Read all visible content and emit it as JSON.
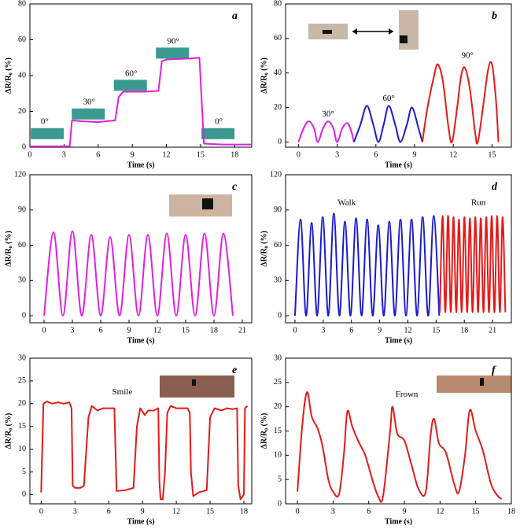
{
  "chart_data": [
    {
      "type": "line",
      "panel_label": "a",
      "x_label": "Time (s)",
      "y_label": "ΔR/R₀ (%)",
      "xlim": [
        0,
        19.5
      ],
      "xticks": [
        0,
        3,
        6,
        9,
        12,
        15,
        18
      ],
      "ylim": [
        0,
        80
      ],
      "yticks": [
        0,
        20,
        40,
        60,
        80
      ],
      "annotations": [
        "0°",
        "30°",
        "60°",
        "90°",
        "0°"
      ],
      "series": [
        {
          "color": "#e020e0",
          "x": [
            0,
            3.5,
            3.7,
            4.5,
            6,
            7.5,
            7.8,
            8.2,
            10,
            11.3,
            11.6,
            12,
            14,
            14.9,
            15.3,
            17,
            19.5
          ],
          "values": [
            0.5,
            0.5,
            15,
            14.5,
            14,
            15,
            28,
            31,
            31,
            31.5,
            48,
            49,
            49.5,
            50,
            2,
            1.5,
            1.5
          ]
        }
      ]
    },
    {
      "type": "line",
      "panel_label": "b",
      "x_label": "Time (s)",
      "y_label": "ΔR/R₀ (%)",
      "xlim": [
        -1,
        16.5
      ],
      "xticks": [
        0,
        3,
        6,
        9,
        12,
        15
      ],
      "ylim": [
        -3,
        80
      ],
      "yticks": [
        0,
        20,
        40,
        60,
        80
      ],
      "annotations": [
        "30°",
        "60°",
        "90°"
      ],
      "series": [
        {
          "color": "#e020e0",
          "x": [
            0,
            0.4,
            0.8,
            1.2,
            1.5,
            1.9,
            2.3,
            2.7,
            3.0,
            3.4,
            3.8,
            4.1,
            4.3
          ],
          "values": [
            0,
            8,
            12,
            8,
            0,
            8,
            12,
            8,
            0,
            8,
            11,
            6,
            0
          ]
        },
        {
          "color": "#1a1ad0",
          "x": [
            4.3,
            4.8,
            5.3,
            5.8,
            6.2,
            6.6,
            7.0,
            7.5,
            7.9,
            8.4,
            8.8,
            9.3,
            9.6
          ],
          "values": [
            0,
            10,
            21,
            10,
            0,
            10,
            21,
            10,
            0,
            10,
            20,
            8,
            0
          ]
        },
        {
          "color": "#e51a1a",
          "x": [
            9.6,
            10.0,
            10.5,
            10.8,
            11.2,
            11.6,
            11.9,
            12.3,
            12.6,
            12.9,
            13.3,
            13.7,
            13.9,
            14.3,
            14.7,
            15.0,
            15.3,
            15.5
          ],
          "values": [
            0,
            20,
            38,
            45,
            35,
            10,
            0,
            20,
            38,
            43,
            30,
            5,
            0,
            20,
            42,
            45,
            25,
            0
          ]
        }
      ]
    },
    {
      "type": "line",
      "panel_label": "c",
      "x_label": "Time (s)",
      "y_label": "ΔR/R₀ (%)",
      "xlim": [
        -1.5,
        22
      ],
      "xticks": [
        0,
        3,
        6,
        9,
        12,
        15,
        18,
        21
      ],
      "ylim": [
        -6,
        120
      ],
      "yticks": [
        0,
        30,
        60,
        90,
        120
      ],
      "series": [
        {
          "color": "#e020e0",
          "x": [
            0,
            1,
            2,
            3,
            4,
            5,
            6,
            7,
            8,
            9,
            10,
            11,
            12,
            13,
            14,
            15,
            16,
            17,
            18,
            19,
            20
          ],
          "values": [
            0,
            71,
            0,
            72,
            0,
            69,
            0,
            67,
            0,
            69,
            0,
            69,
            0,
            70,
            0,
            69,
            0,
            70,
            0,
            70,
            0
          ]
        }
      ]
    },
    {
      "type": "line",
      "panel_label": "d",
      "x_label": "Time (s)",
      "y_label": "ΔR/R₀ (%)",
      "xlim": [
        -1,
        23
      ],
      "xticks": [
        0,
        3,
        6,
        9,
        12,
        15,
        18,
        21
      ],
      "ylim": [
        -6,
        120
      ],
      "yticks": [
        0,
        30,
        60,
        90,
        120
      ],
      "annotations": [
        "Walk",
        "Run"
      ],
      "series": [
        {
          "color": "#1a1ad0",
          "x": [
            0,
            0.59,
            1.18,
            1.77,
            2.36,
            2.95,
            3.54,
            4.13,
            4.72,
            5.31,
            5.9,
            6.49,
            7.08,
            7.67,
            8.26,
            8.85,
            9.44,
            10.03,
            10.62,
            11.21,
            11.8,
            12.39,
            12.98,
            13.57,
            14.16,
            14.75,
            15.34
          ],
          "values": [
            0,
            82,
            0,
            79,
            0,
            84,
            0,
            87,
            0,
            80,
            0,
            83,
            0,
            82,
            0,
            77,
            0,
            80,
            0,
            82,
            0,
            82,
            0,
            84,
            0,
            85,
            0
          ]
        },
        {
          "color": "#e51a1a",
          "x": [
            15.4,
            15.69,
            15.98,
            16.27,
            16.56,
            16.85,
            17.14,
            17.43,
            17.72,
            18.01,
            18.3,
            18.59,
            18.88,
            19.17,
            19.46,
            19.75,
            20.04,
            20.33,
            20.62,
            20.91,
            21.2,
            21.49,
            21.78,
            22.07,
            22.36
          ],
          "values": [
            3,
            85,
            3,
            85,
            3,
            84,
            3,
            82,
            3,
            84,
            3,
            83,
            3,
            84,
            3,
            83,
            3,
            84,
            3,
            85,
            3,
            85,
            3,
            84,
            3
          ]
        }
      ]
    },
    {
      "type": "line",
      "panel_label": "e",
      "x_label": "Time (s)",
      "y_label": "ΔR/R₀ (%)",
      "xlim": [
        -1,
        18.7
      ],
      "xticks": [
        0,
        3,
        6,
        9,
        12,
        15,
        18
      ],
      "ylim": [
        -2,
        30
      ],
      "yticks": [
        0,
        5,
        10,
        15,
        20,
        25,
        30
      ],
      "annotations": [
        "Smile"
      ],
      "series": [
        {
          "color": "#e51a1a",
          "x": [
            0,
            0.2,
            0.5,
            1,
            1.5,
            2,
            2.5,
            2.7,
            2.8,
            3,
            3.5,
            3.8,
            4.2,
            4.5,
            5,
            5.5,
            6.5,
            6.6,
            6.7,
            7.5,
            8.2,
            8.5,
            8.8,
            9.2,
            9.5,
            10,
            10.4,
            10.5,
            10.6,
            10.8,
            11,
            11.2,
            11.5,
            12,
            13,
            13.2,
            13.3,
            13.5,
            14,
            14.7,
            15,
            15.4,
            16,
            16.5,
            17,
            17.4,
            17.5,
            17.7,
            18,
            18.1,
            18.3
          ],
          "values": [
            0.5,
            20,
            20.5,
            20,
            20.3,
            20,
            20.3,
            19,
            2,
            1.5,
            1.5,
            2,
            17,
            19.5,
            18.5,
            19,
            19,
            10,
            0.8,
            1,
            1.5,
            15,
            19,
            17.5,
            18.5,
            18.5,
            19,
            3,
            -1,
            -1,
            5,
            18,
            19.5,
            19,
            19,
            18,
            5,
            -0.3,
            0.5,
            1,
            17,
            19,
            18.5,
            19,
            18.8,
            19,
            2,
            -1,
            0,
            19,
            19.5
          ]
        }
      ]
    },
    {
      "type": "line",
      "panel_label": "f",
      "x_label": "Time (s)",
      "y_label": "ΔR/R₀ (%)",
      "xlim": [
        -1,
        18
      ],
      "xticks": [
        0,
        3,
        6,
        9,
        12,
        15,
        18
      ],
      "ylim": [
        0,
        30
      ],
      "yticks": [
        0,
        5,
        10,
        15,
        20,
        25,
        30
      ],
      "annotations": [
        "Frown"
      ],
      "series": [
        {
          "color": "#e51a1a",
          "x": [
            0,
            0.4,
            0.8,
            1.2,
            1.7,
            2.1,
            2.6,
            3,
            3.5,
            3.9,
            4.2,
            4.6,
            5.1,
            5.7,
            6.3,
            6.8,
            7.2,
            7.8,
            8,
            8.4,
            9,
            9.6,
            10.2,
            10.8,
            11.2,
            11.5,
            11.9,
            12.5,
            13.2,
            13.6,
            14.1,
            14.5,
            15,
            15.6,
            16.3,
            16.9,
            17.2
          ],
          "values": [
            2.5,
            16,
            23,
            18,
            15.5,
            12,
            5,
            2.5,
            2,
            10,
            19,
            16,
            13,
            10,
            5,
            1.5,
            1.5,
            15,
            20,
            14.5,
            13,
            8,
            3,
            2.5,
            14,
            17.5,
            12.5,
            10.5,
            4,
            2.5,
            10,
            19.3,
            15,
            11,
            4,
            1.5,
            1
          ]
        }
      ]
    }
  ]
}
